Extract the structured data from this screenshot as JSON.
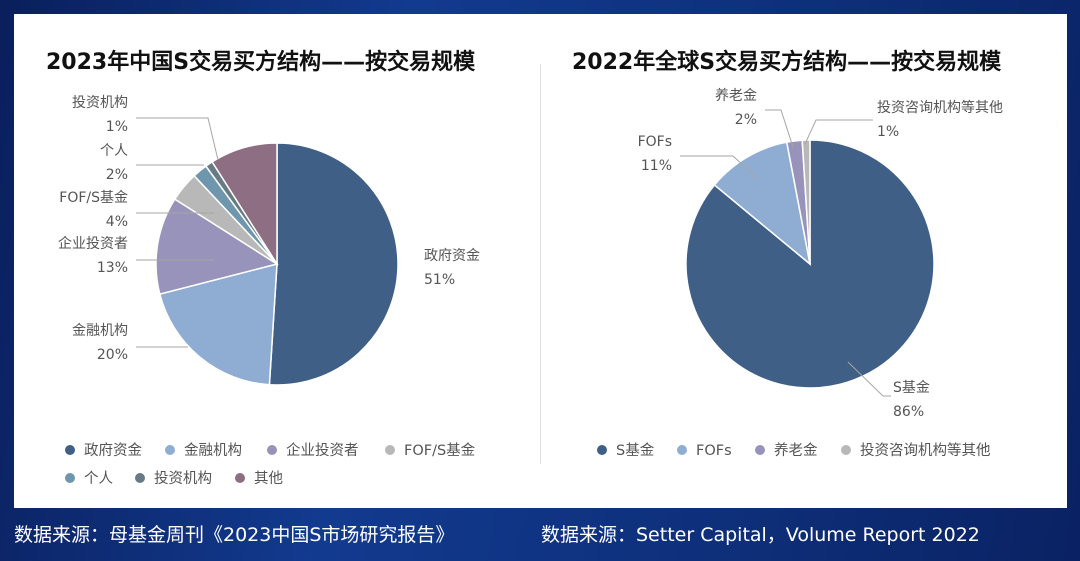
{
  "chart_data": [
    {
      "type": "pie",
      "title": "2023年中国S交易买方结构——按交易规模",
      "categories": [
        "政府资金",
        "金融机构",
        "企业投资者",
        "FOF/S基金",
        "个人",
        "投资机构",
        "其他"
      ],
      "values": [
        51,
        20,
        13,
        4,
        2,
        1,
        9
      ],
      "value_labels": [
        "51%",
        "20%",
        "13%",
        "4%",
        "2%",
        "1%",
        ""
      ],
      "colors": [
        "#3f5f86",
        "#8fadd2",
        "#9893bb",
        "#b8b8b8",
        "#6e96ac",
        "#667b85",
        "#8d6e82"
      ],
      "legend": [
        "政府资金",
        "金融机构",
        "企业投资者",
        "FOF/S基金",
        "个人",
        "投资机构",
        "其他"
      ],
      "legend_placement": "bottom"
    },
    {
      "type": "pie",
      "title": "2022年全球S交易买方结构——按交易规模",
      "categories": [
        "S基金",
        "FOFs",
        "养老金",
        "投资咨询机构等其他"
      ],
      "values": [
        86,
        11,
        2,
        1
      ],
      "value_labels": [
        "86%",
        "11%",
        "2%",
        "1%"
      ],
      "colors": [
        "#3f5f86",
        "#8fadd2",
        "#9893bb",
        "#b8b8b8"
      ],
      "legend": [
        "S基金",
        "FOFs",
        "养老金",
        "投资咨询机构等其他"
      ],
      "legend_placement": "bottom"
    }
  ],
  "footer": {
    "source_left": "数据来源：母基金周刊《2023中国S市场研究报告》",
    "source_right": "数据来源：Setter Capital，Volume Report 2022"
  }
}
